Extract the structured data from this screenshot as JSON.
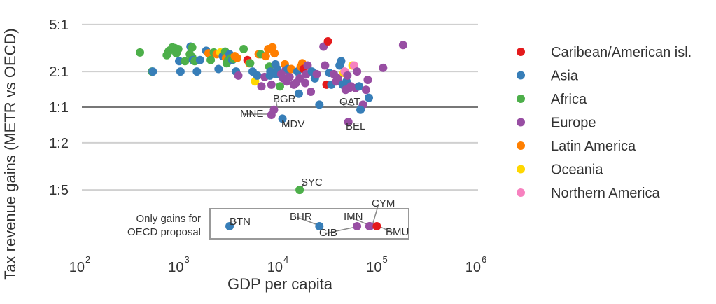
{
  "chart_data": {
    "type": "scatter",
    "title": "",
    "xlabel": "GDP per capita",
    "ylabel": "Tax revenue gains (METR vs OECD)",
    "xscale": "log",
    "yscale": "log",
    "xlim": [
      100,
      1000000
    ],
    "ylim_ratio": [
      0.2,
      5
    ],
    "x_ticks": [
      {
        "value": 100,
        "base": "10",
        "exp": "2"
      },
      {
        "value": 1000,
        "base": "10",
        "exp": "3"
      },
      {
        "value": 10000,
        "base": "10",
        "exp": "4"
      },
      {
        "value": 100000,
        "base": "10",
        "exp": "5"
      },
      {
        "value": 1000000,
        "base": "10",
        "exp": "6"
      }
    ],
    "y_ticks": [
      {
        "value": 5,
        "label": "5:1"
      },
      {
        "value": 2,
        "label": "2:1"
      },
      {
        "value": 1,
        "label": "1:1"
      },
      {
        "value": 0.5,
        "label": "1:2"
      },
      {
        "value": 0.2,
        "label": "1:5"
      }
    ],
    "grid": "horizontal",
    "reference_line": 1,
    "legend_position": "right",
    "series": [
      {
        "name": "Caribean/American isl.",
        "color": "#e41a1c"
      },
      {
        "name": "Asia",
        "color": "#377eb8"
      },
      {
        "name": "Africa",
        "color": "#4daf4a"
      },
      {
        "name": "Europe",
        "color": "#984ea3"
      },
      {
        "name": "Latin America",
        "color": "#ff7f00"
      },
      {
        "name": "Oceania",
        "color": "#ffd700"
      },
      {
        "name": "Northern America",
        "color": "#f781bf"
      }
    ],
    "points": [
      [
        386,
        2.9,
        2
      ],
      [
        510,
        2.0,
        2
      ],
      [
        520,
        2.0,
        1
      ],
      [
        720,
        2.75,
        2
      ],
      [
        740,
        2.9,
        2
      ],
      [
        760,
        3.0,
        2
      ],
      [
        820,
        3.2,
        2
      ],
      [
        870,
        3.15,
        2
      ],
      [
        900,
        2.85,
        2
      ],
      [
        940,
        3.1,
        2
      ],
      [
        960,
        2.45,
        1
      ],
      [
        990,
        2.0,
        1
      ],
      [
        1100,
        2.45,
        2
      ],
      [
        1230,
        2.8,
        2
      ],
      [
        1250,
        3.25,
        1
      ],
      [
        1300,
        3.2,
        2
      ],
      [
        1300,
        2.65,
        2
      ],
      [
        1320,
        2.5,
        1
      ],
      [
        1380,
        2.45,
        2
      ],
      [
        1450,
        2.0,
        1
      ],
      [
        1560,
        2.5,
        1
      ],
      [
        1800,
        3.0,
        1
      ],
      [
        1900,
        2.85,
        4
      ],
      [
        2000,
        2.5,
        2
      ],
      [
        2150,
        2.9,
        2
      ],
      [
        2300,
        2.8,
        4
      ],
      [
        2400,
        2.1,
        1
      ],
      [
        2500,
        2.9,
        5
      ],
      [
        2650,
        2.7,
        1
      ],
      [
        2800,
        2.95,
        2
      ],
      [
        2850,
        2.6,
        4
      ],
      [
        2900,
        2.35,
        2
      ],
      [
        3000,
        2.5,
        2
      ],
      [
        3100,
        2.8,
        1
      ],
      [
        3200,
        2.6,
        2
      ],
      [
        3300,
        2.5,
        1
      ],
      [
        3400,
        2.55,
        2
      ],
      [
        3500,
        2.7,
        4
      ],
      [
        3700,
        2.6,
        4
      ],
      [
        3600,
        2.0,
        1
      ],
      [
        3800,
        1.85,
        3
      ],
      [
        4300,
        3.1,
        2
      ],
      [
        4700,
        2.5,
        0
      ],
      [
        4900,
        2.35,
        4
      ],
      [
        5000,
        2.35,
        2
      ],
      [
        5300,
        2.0,
        1
      ],
      [
        5600,
        1.65,
        5
      ],
      [
        5900,
        1.85,
        1
      ],
      [
        6100,
        2.8,
        4
      ],
      [
        6400,
        2.8,
        2
      ],
      [
        6500,
        1.5,
        3
      ],
      [
        7000,
        1.8,
        3
      ],
      [
        7200,
        2.7,
        4
      ],
      [
        7600,
        3.1,
        4
      ],
      [
        7800,
        2.2,
        2
      ],
      [
        7900,
        1.85,
        1
      ],
      [
        8000,
        2.0,
        1
      ],
      [
        8200,
        1.55,
        3
      ],
      [
        8400,
        3.2,
        4
      ],
      [
        8800,
        2.85,
        4
      ],
      [
        9000,
        2.3,
        1
      ],
      [
        9200,
        1.9,
        1
      ],
      [
        9400,
        2.1,
        1
      ],
      [
        10000,
        1.5,
        2
      ],
      [
        10300,
        1.9,
        3
      ],
      [
        10800,
        1.75,
        3
      ],
      [
        11200,
        2.3,
        4
      ],
      [
        11400,
        2.05,
        3
      ],
      [
        11700,
        1.65,
        3
      ],
      [
        12000,
        2.1,
        1
      ],
      [
        12500,
        1.8,
        3
      ],
      [
        13000,
        2.1,
        4
      ],
      [
        13800,
        1.55,
        3
      ],
      [
        14500,
        1.6,
        3
      ],
      [
        15000,
        2.0,
        1
      ],
      [
        15500,
        1.3,
        1
      ],
      [
        15800,
        1.75,
        3
      ],
      [
        16200,
        2.2,
        4
      ],
      [
        16800,
        2.35,
        4
      ],
      [
        17300,
        2.1,
        0
      ],
      [
        18000,
        1.6,
        3
      ],
      [
        18500,
        1.9,
        3
      ],
      [
        19000,
        2.25,
        3
      ],
      [
        20500,
        1.35,
        3
      ],
      [
        21000,
        2.0,
        1
      ],
      [
        22500,
        1.75,
        1
      ],
      [
        23500,
        1.9,
        3
      ],
      [
        25000,
        1.05,
        1
      ],
      [
        27500,
        3.25,
        3
      ],
      [
        28500,
        2.25,
        3
      ],
      [
        29500,
        1.55,
        0
      ],
      [
        30500,
        3.6,
        0
      ],
      [
        31500,
        1.95,
        1
      ],
      [
        33000,
        1.55,
        1
      ],
      [
        35000,
        1.9,
        3
      ],
      [
        37000,
        1.65,
        3
      ],
      [
        38500,
        1.75,
        3
      ],
      [
        40000,
        2.25,
        1
      ],
      [
        41500,
        2.45,
        1
      ],
      [
        43000,
        1.55,
        1
      ],
      [
        44000,
        1.95,
        5
      ],
      [
        45000,
        2.0,
        6
      ],
      [
        46000,
        1.4,
        3
      ],
      [
        47000,
        1.65,
        1
      ],
      [
        48000,
        1.85,
        3
      ],
      [
        50000,
        1.45,
        3
      ],
      [
        52000,
        1.5,
        3
      ],
      [
        54000,
        2.25,
        5
      ],
      [
        56000,
        2.25,
        6
      ],
      [
        58000,
        1.45,
        3
      ],
      [
        60000,
        2.0,
        3
      ],
      [
        63000,
        1.5,
        1
      ],
      [
        66000,
        0.97,
        1
      ],
      [
        69000,
        1.05,
        3
      ],
      [
        74000,
        1.4,
        3
      ],
      [
        77000,
        1.7,
        3
      ],
      [
        79000,
        1.2,
        1
      ],
      [
        110000,
        2.15,
        3
      ],
      [
        175000,
        3.35,
        3
      ],
      [
        8700,
        0.95,
        3
      ],
      [
        8200,
        0.86,
        3
      ],
      [
        10600,
        0.8,
        1
      ],
      [
        49000,
        0.75,
        3
      ],
      [
        65000,
        0.95,
        1
      ],
      [
        15800,
        0.2,
        2
      ]
    ],
    "only_oecd_points": [
      {
        "code": "BTN",
        "gdp": 3100,
        "region": 1
      },
      {
        "code": "BHR",
        "gdp": 25000,
        "region": 1
      },
      {
        "code": "GIB",
        "gdp": 60000,
        "region": 3
      },
      {
        "code": "IMN",
        "gdp": 80000,
        "region": 3
      },
      {
        "code": "CYM",
        "gdp": 81000,
        "region": 3
      },
      {
        "code": "BMU",
        "gdp": 95000,
        "region": 0
      }
    ],
    "annotations": [
      {
        "text": "BGR",
        "gdp": 9000,
        "ratio": 0.95
      },
      {
        "text": "MNE",
        "gdp": 8200,
        "ratio": 0.86
      },
      {
        "text": "MDV",
        "gdp": 10600,
        "ratio": 0.8
      },
      {
        "text": "QAT",
        "gdp": 65000,
        "ratio": 0.95
      },
      {
        "text": "BEL",
        "gdp": 49000,
        "ratio": 0.75
      },
      {
        "text": "SYC",
        "gdp": 15800,
        "ratio": 0.2
      }
    ],
    "box_note": [
      "Only gains for",
      "OECD proposal"
    ]
  }
}
